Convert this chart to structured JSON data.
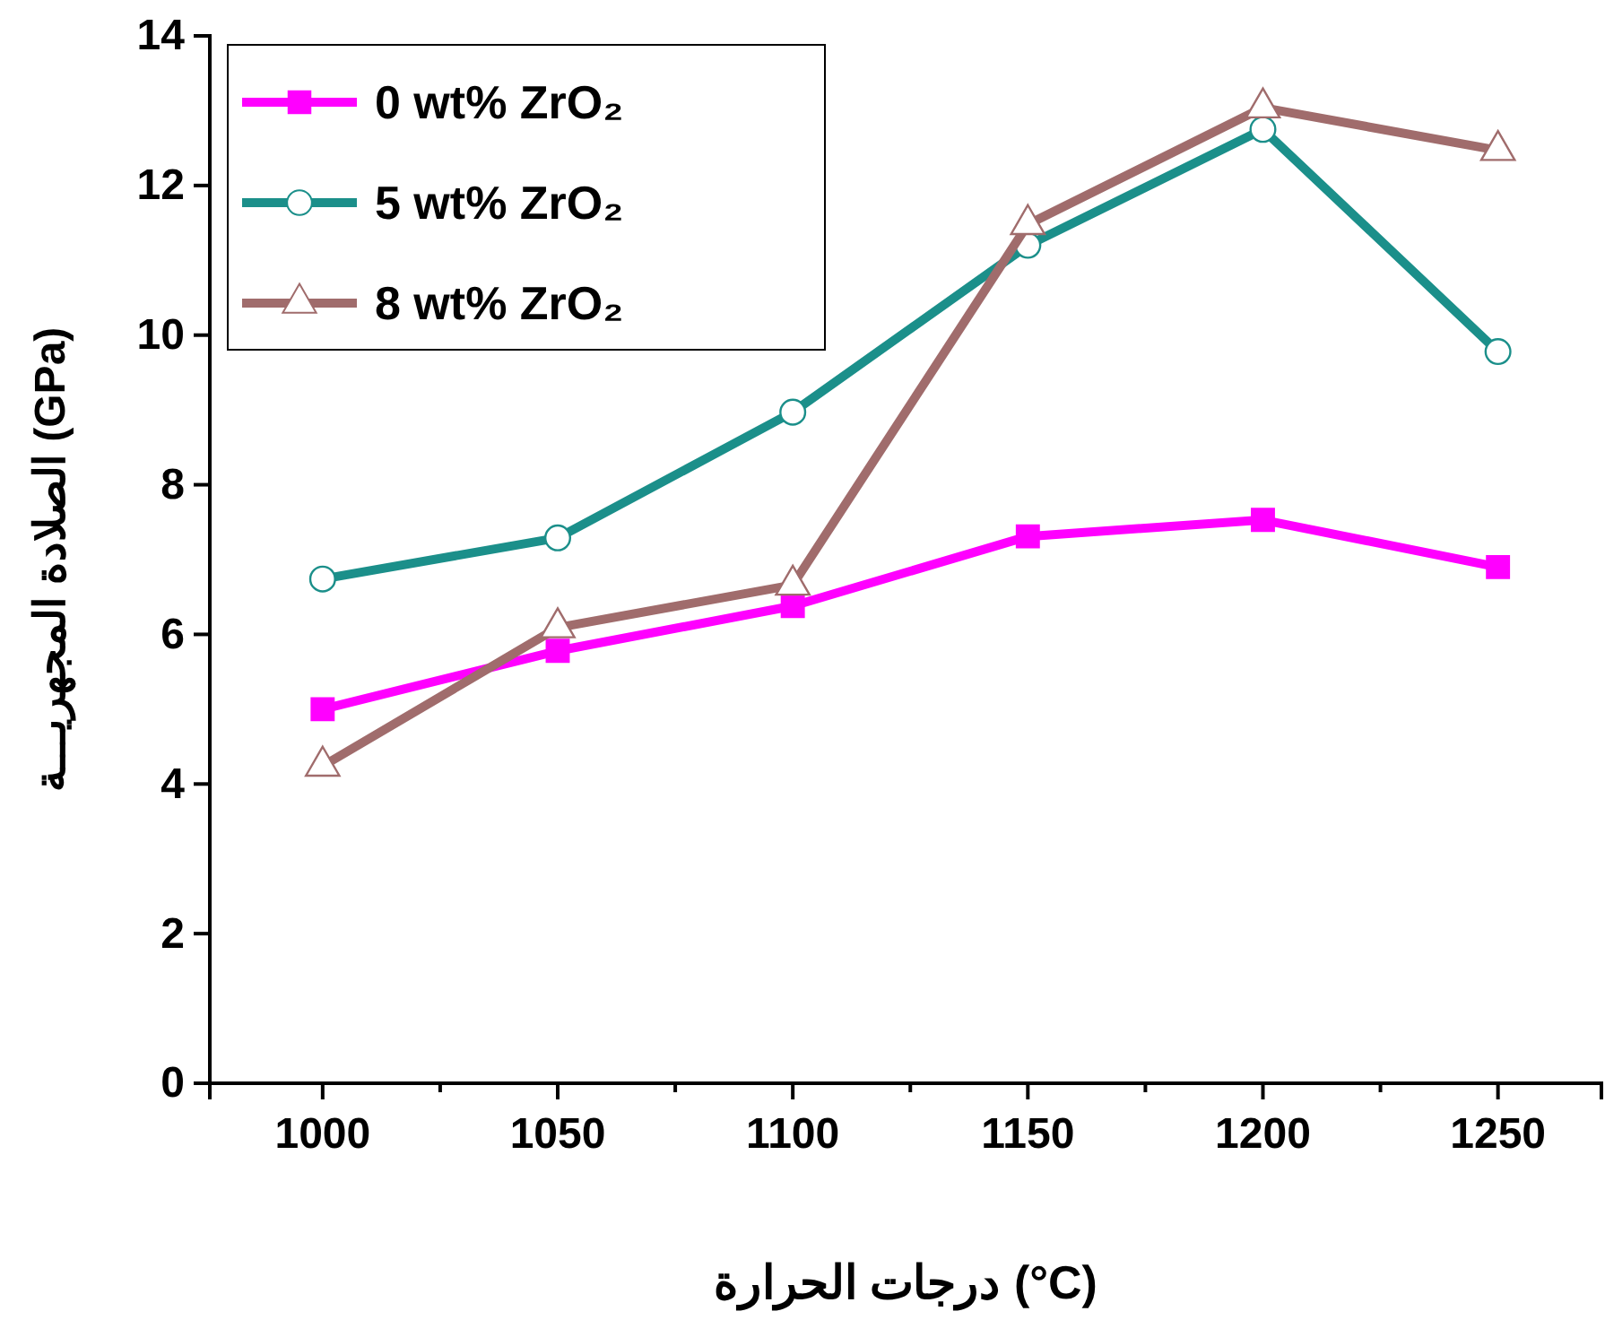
{
  "chart_data": {
    "type": "line",
    "xlabel": "درجات  الحرارة (°C)",
    "ylabel": "الصلادة المجهريـــة (GPa)",
    "x": [
      1000,
      1050,
      1100,
      1150,
      1200,
      1250
    ],
    "xlim": [
      976,
      1272
    ],
    "xticks": [
      1000,
      {
        "value": 1025,
        "label": null
      },
      1050,
      {
        "value": 1075,
        "label": null
      },
      1100,
      {
        "value": 1125,
        "label": null
      },
      1150,
      {
        "value": 1175,
        "label": null
      },
      1200,
      {
        "value": 1225,
        "label": null
      },
      1250
    ],
    "ylim": [
      0,
      14
    ],
    "yticks": [
      0,
      2,
      4,
      6,
      8,
      10,
      12,
      14
    ],
    "grid": false,
    "legend": "top left",
    "line_style": "solid",
    "series": [
      {
        "name": "0 wt% ZrO₂",
        "color": "#ff00ff",
        "marker": "square",
        "values": [
          5.0,
          5.78,
          6.38,
          7.31,
          7.53,
          6.9
        ]
      },
      {
        "name": "5 wt% ZrO₂",
        "color": "#1b8f8a",
        "marker": "circle",
        "values": [
          6.74,
          7.29,
          8.97,
          11.2,
          12.75,
          9.78
        ]
      },
      {
        "name": "8 wt% ZrO₂",
        "color": "#a06c6c",
        "marker": "triangle",
        "values": [
          4.24,
          6.09,
          6.66,
          11.48,
          13.04,
          12.47
        ]
      }
    ]
  }
}
